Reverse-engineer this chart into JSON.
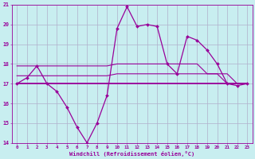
{
  "xlabel": "Windchill (Refroidissement éolien,°C)",
  "hours": [
    0,
    1,
    2,
    3,
    4,
    5,
    6,
    7,
    8,
    9,
    10,
    11,
    12,
    13,
    14,
    15,
    16,
    17,
    18,
    19,
    20,
    21,
    22,
    23
  ],
  "windchill": [
    17.0,
    17.3,
    17.9,
    17.0,
    16.6,
    15.8,
    14.8,
    14.0,
    15.0,
    16.4,
    19.8,
    20.9,
    19.9,
    20.0,
    19.9,
    18.0,
    17.5,
    19.4,
    19.2,
    18.7,
    18.0,
    17.0,
    16.9,
    17.0
  ],
  "line1": [
    17.0,
    17.0,
    17.0,
    17.0,
    17.0,
    17.0,
    17.0,
    17.0,
    17.0,
    17.0,
    17.0,
    17.0,
    17.0,
    17.0,
    17.0,
    17.0,
    17.0,
    17.0,
    17.0,
    17.0,
    17.0,
    17.0,
    17.0,
    17.0
  ],
  "line2": [
    17.4,
    17.4,
    17.4,
    17.4,
    17.4,
    17.4,
    17.4,
    17.4,
    17.4,
    17.4,
    17.5,
    17.5,
    17.5,
    17.5,
    17.5,
    17.5,
    17.5,
    17.5,
    17.5,
    17.5,
    17.5,
    17.0,
    17.0,
    17.0
  ],
  "line3": [
    17.9,
    17.9,
    17.9,
    17.9,
    17.9,
    17.9,
    17.9,
    17.9,
    17.9,
    17.9,
    18.0,
    18.0,
    18.0,
    18.0,
    18.0,
    18.0,
    18.0,
    18.0,
    18.0,
    17.5,
    17.5,
    17.5,
    17.0,
    17.0
  ],
  "bg_color": "#c8eef0",
  "line_color": "#990099",
  "grid_color": "#b0b0cc",
  "ylim": [
    14,
    21
  ],
  "yticks": [
    14,
    15,
    16,
    17,
    18,
    19,
    20,
    21
  ],
  "xlim_min": -0.5,
  "xlim_max": 23.5
}
